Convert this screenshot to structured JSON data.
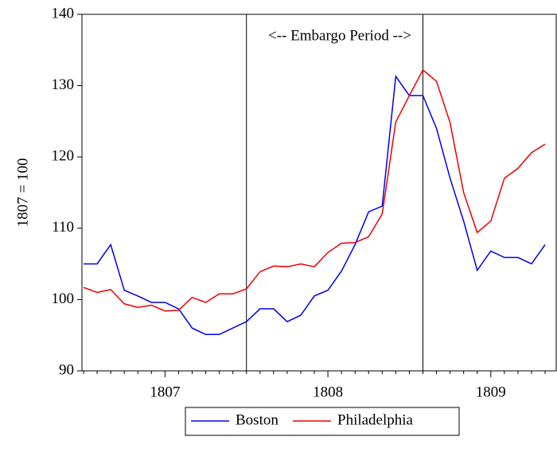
{
  "chart_data": {
    "type": "line",
    "y_label": "1807 = 100",
    "annotation": "<-- Embargo Period -->",
    "categories": [
      null,
      null,
      null,
      null,
      null,
      null,
      "1807",
      null,
      null,
      null,
      null,
      null,
      null,
      null,
      null,
      null,
      null,
      null,
      "1808",
      null,
      null,
      null,
      null,
      null,
      null,
      null,
      null,
      null,
      null,
      null,
      "1809",
      null,
      null,
      null,
      null
    ],
    "vlines": [
      12,
      25
    ],
    "series": [
      {
        "name": "Boston",
        "color": "#0000ee",
        "values": [
          105,
          105,
          107.7,
          101.3,
          100.5,
          99.6,
          99.6,
          98.7,
          96,
          95.1,
          95.1,
          96,
          96.9,
          98.7,
          98.7,
          96.9,
          97.8,
          100.5,
          101.3,
          104,
          107.7,
          112.3,
          113.1,
          131.3,
          128.6,
          128.6,
          124,
          117,
          111,
          104.1,
          106.8,
          105.9,
          105.9,
          105,
          107.7
        ]
      },
      {
        "name": "Philadelphia",
        "color": "#ee0000",
        "values": [
          101.7,
          101,
          101.4,
          99.4,
          98.9,
          99.2,
          98.4,
          98.5,
          100.3,
          99.6,
          100.8,
          100.8,
          101.5,
          103.9,
          104.7,
          104.6,
          105,
          104.6,
          106.6,
          107.9,
          108,
          108.8,
          112,
          124.9,
          128.6,
          132.2,
          130.6,
          124.8,
          115,
          109.4,
          111,
          117,
          118.4,
          120.6,
          121.8
        ]
      }
    ],
    "ylim": [
      90,
      140
    ],
    "yticks": [
      90,
      100,
      110,
      120,
      130,
      140
    ]
  }
}
